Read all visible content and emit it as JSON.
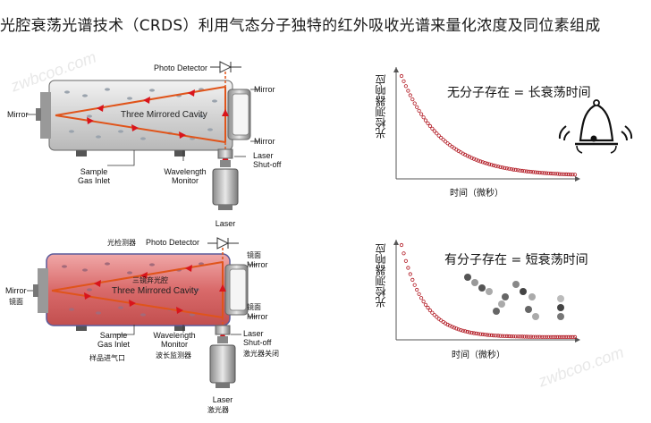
{
  "header": {
    "title": "光腔衰荡光谱技术（CRDS）利用气态分子独特的红外吸收光谱来量化浓度及同位素组成"
  },
  "top_diagram": {
    "photo_detector": "Photo Detector",
    "mirror_top": "Mirror",
    "mirror_left": "Mirror",
    "mirror_bottom": "Mirror",
    "cavity": "Three Mirrored Cavity",
    "sample_inlet": "Sample\nGas Inlet",
    "wavelength_monitor": "Wavelength\nMonitor",
    "laser_shutoff": "Laser\nShut-off",
    "laser": "Laser"
  },
  "bottom_diagram": {
    "photo_detector_cn": "光检测器",
    "photo_detector": "Photo Detector",
    "mirror_top_cn": "镜面",
    "mirror_top": "Mirror",
    "mirror_left": "Mirror",
    "mirror_left_cn": "镜面",
    "mirror_bottom_cn": "镜面",
    "mirror_bottom": "Mirror",
    "cavity_cn": "三镜弃光腔",
    "cavity": "Three Mirrored Cavity",
    "sample_inlet": "Sample\nGas Inlet",
    "sample_inlet_cn": "样品进气口",
    "wavelength_monitor": "Wavelength\nMonitor",
    "wavelength_monitor_cn": "波长监测器",
    "laser_shutoff": "Laser\nShut-off",
    "laser_shutoff_cn": "激光器关闭",
    "laser": "Laser",
    "laser_cn": "激光器"
  },
  "graph_top": {
    "title": "无分子存在 = 长衰荡时间",
    "ylabel": "光检测器响应",
    "xlabel": "时间（微秒）",
    "icon": "bell-icon"
  },
  "graph_bottom": {
    "title": "有分子存在 = 短衰荡时间",
    "ylabel": "光检测器响应",
    "xlabel": "时间（微秒）",
    "icon": "molecules-icon"
  },
  "watermark": "zwbcoo.com",
  "colors": {
    "beam": "#e0541a",
    "arrow": "#d9141b",
    "decay_curve": "#b0151f",
    "cavity_fill_filled": "#d96a6a",
    "cavity_fill_empty": "#d6d6d6"
  }
}
